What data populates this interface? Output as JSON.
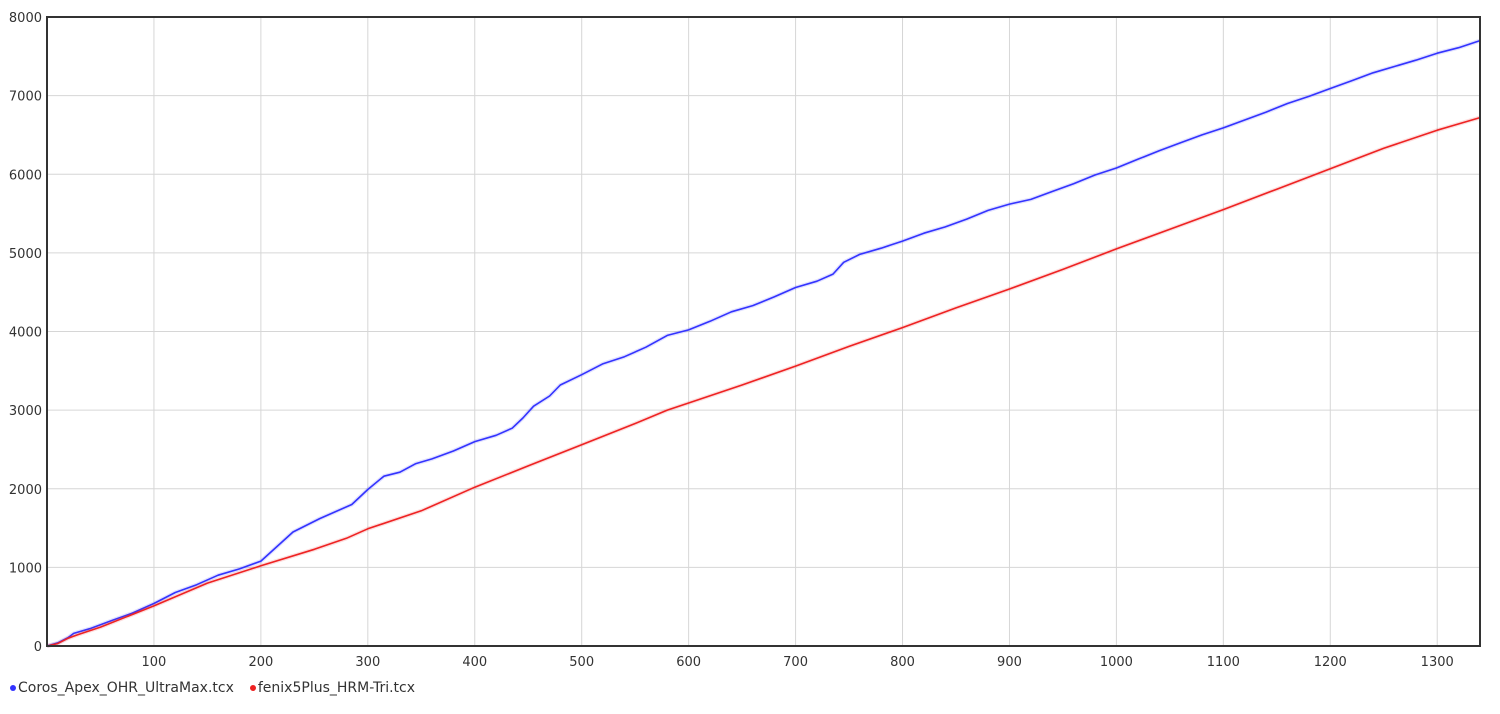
{
  "chart_data": {
    "type": "line",
    "title": "",
    "xlabel": "",
    "ylabel": "",
    "xlim": [
      0,
      1340
    ],
    "ylim": [
      0,
      8000
    ],
    "x_ticks": [
      100,
      200,
      300,
      400,
      500,
      600,
      700,
      800,
      900,
      1000,
      1100,
      1200,
      1300
    ],
    "x_tick_labels": [
      "100",
      "200",
      "300",
      "400",
      "500",
      "600",
      "700",
      "800",
      "900",
      "1000",
      "1100",
      "1200",
      "1300"
    ],
    "y_ticks": [
      0,
      1000,
      2000,
      3000,
      4000,
      5000,
      6000,
      7000,
      8000
    ],
    "y_tick_labels": [
      "0",
      "1000",
      "2000",
      "3000",
      "4000",
      "5000",
      "6000",
      "7000",
      "8000"
    ],
    "grid": true,
    "legend_position": "bottom-left",
    "series": [
      {
        "name": "Coros_Apex_OHR_UltraMax.tcx",
        "color": "#3333ff",
        "points": [
          [
            0,
            0
          ],
          [
            10,
            40
          ],
          [
            20,
            110
          ],
          [
            25,
            160
          ],
          [
            40,
            220
          ],
          [
            60,
            320
          ],
          [
            80,
            420
          ],
          [
            100,
            540
          ],
          [
            120,
            680
          ],
          [
            140,
            780
          ],
          [
            160,
            900
          ],
          [
            180,
            980
          ],
          [
            200,
            1080
          ],
          [
            230,
            1450
          ],
          [
            255,
            1620
          ],
          [
            285,
            1800
          ],
          [
            300,
            1990
          ],
          [
            315,
            2160
          ],
          [
            330,
            2210
          ],
          [
            345,
            2320
          ],
          [
            360,
            2380
          ],
          [
            380,
            2480
          ],
          [
            400,
            2600
          ],
          [
            420,
            2680
          ],
          [
            435,
            2770
          ],
          [
            445,
            2900
          ],
          [
            455,
            3050
          ],
          [
            470,
            3180
          ],
          [
            480,
            3320
          ],
          [
            500,
            3450
          ],
          [
            520,
            3590
          ],
          [
            540,
            3680
          ],
          [
            560,
            3800
          ],
          [
            580,
            3950
          ],
          [
            600,
            4020
          ],
          [
            620,
            4130
          ],
          [
            640,
            4250
          ],
          [
            660,
            4330
          ],
          [
            680,
            4440
          ],
          [
            700,
            4560
          ],
          [
            720,
            4640
          ],
          [
            735,
            4730
          ],
          [
            745,
            4880
          ],
          [
            760,
            4980
          ],
          [
            780,
            5060
          ],
          [
            800,
            5150
          ],
          [
            820,
            5250
          ],
          [
            840,
            5330
          ],
          [
            860,
            5430
          ],
          [
            880,
            5540
          ],
          [
            900,
            5620
          ],
          [
            920,
            5680
          ],
          [
            940,
            5780
          ],
          [
            960,
            5880
          ],
          [
            980,
            5990
          ],
          [
            1000,
            6080
          ],
          [
            1020,
            6190
          ],
          [
            1040,
            6300
          ],
          [
            1060,
            6400
          ],
          [
            1080,
            6500
          ],
          [
            1100,
            6590
          ],
          [
            1120,
            6690
          ],
          [
            1140,
            6790
          ],
          [
            1160,
            6900
          ],
          [
            1180,
            6990
          ],
          [
            1200,
            7090
          ],
          [
            1220,
            7190
          ],
          [
            1240,
            7290
          ],
          [
            1260,
            7370
          ],
          [
            1280,
            7450
          ],
          [
            1300,
            7540
          ],
          [
            1320,
            7610
          ],
          [
            1340,
            7700
          ]
        ]
      },
      {
        "name": "fenix5Plus_HRM-Tri.tcx",
        "color": "#ee2222",
        "points": [
          [
            0,
            0
          ],
          [
            10,
            30
          ],
          [
            20,
            100
          ],
          [
            30,
            150
          ],
          [
            50,
            240
          ],
          [
            100,
            510
          ],
          [
            150,
            800
          ],
          [
            200,
            1020
          ],
          [
            250,
            1230
          ],
          [
            280,
            1370
          ],
          [
            300,
            1490
          ],
          [
            350,
            1720
          ],
          [
            400,
            2020
          ],
          [
            450,
            2290
          ],
          [
            500,
            2560
          ],
          [
            550,
            2830
          ],
          [
            580,
            3000
          ],
          [
            600,
            3090
          ],
          [
            650,
            3320
          ],
          [
            700,
            3560
          ],
          [
            750,
            3810
          ],
          [
            800,
            4050
          ],
          [
            850,
            4300
          ],
          [
            900,
            4540
          ],
          [
            950,
            4790
          ],
          [
            1000,
            5050
          ],
          [
            1050,
            5300
          ],
          [
            1100,
            5550
          ],
          [
            1150,
            5810
          ],
          [
            1200,
            6070
          ],
          [
            1250,
            6330
          ],
          [
            1300,
            6560
          ],
          [
            1340,
            6720
          ]
        ]
      }
    ]
  }
}
